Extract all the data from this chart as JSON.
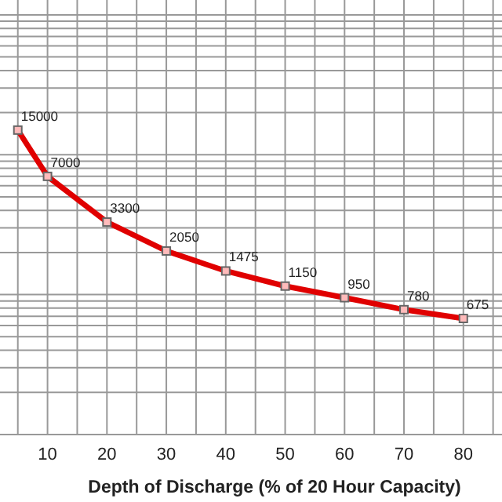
{
  "chart_data": {
    "type": "line",
    "xlabel": "Depth of Discharge (% of 20 Hour Capacity)",
    "x": [
      5,
      10,
      20,
      30,
      40,
      50,
      60,
      70,
      80
    ],
    "series": [
      {
        "color": "#e00000",
        "values": [
          15000,
          7000,
          3300,
          2050,
          1475,
          1150,
          950,
          780,
          675
        ]
      }
    ],
    "data_labels": true,
    "xlim": [
      2,
      86.5
    ],
    "xticks": [
      {
        "value": 5,
        "label": null
      },
      10,
      {
        "value": 15,
        "label": null
      },
      20,
      {
        "value": 25,
        "label": null
      },
      30,
      {
        "value": 35,
        "label": null
      },
      40,
      {
        "value": 45,
        "label": null
      },
      50,
      {
        "value": 55,
        "label": null
      },
      60,
      {
        "value": 65,
        "label": null
      },
      70,
      {
        "value": 75,
        "label": null
      },
      80,
      {
        "value": 85,
        "label": null
      }
    ],
    "log": true,
    "tick_labels": "x",
    "grid": true,
    "marker": "square",
    "line_style": "solid"
  }
}
